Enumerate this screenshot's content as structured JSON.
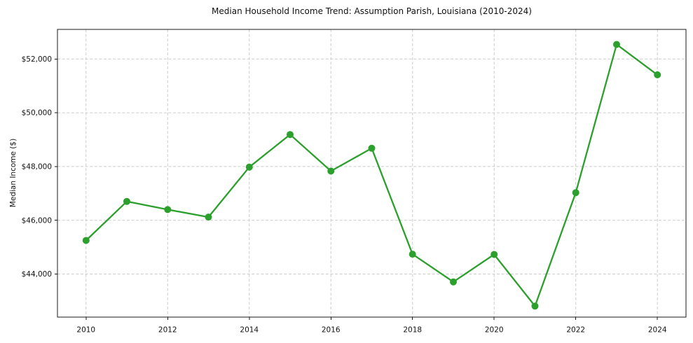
{
  "chart_data": {
    "type": "line",
    "title": "Median Household Income Trend: Assumption Parish, Louisiana (2010-2024)",
    "xlabel": "",
    "ylabel": "Median Income ($)",
    "x": [
      2010,
      2011,
      2012,
      2013,
      2014,
      2015,
      2016,
      2017,
      2018,
      2019,
      2020,
      2021,
      2022,
      2023,
      2024
    ],
    "values": [
      45250,
      46700,
      46400,
      46120,
      47980,
      49190,
      47830,
      48680,
      44740,
      43710,
      44730,
      42810,
      47030,
      52540,
      51410
    ],
    "x_ticks": {
      "values": [
        2010,
        2012,
        2014,
        2016,
        2018,
        2020,
        2022,
        2024
      ],
      "labels": [
        "2010",
        "2012",
        "2014",
        "2016",
        "2018",
        "2020",
        "2022",
        "2024"
      ]
    },
    "y_ticks": {
      "values": [
        44000,
        46000,
        48000,
        50000,
        52000
      ],
      "labels": [
        "$44,000",
        "$46,000",
        "$48,000",
        "$50,000",
        "$52,000"
      ]
    },
    "xlim": [
      2009.3,
      2024.7
    ],
    "ylim": [
      42400,
      53100
    ],
    "grid": true,
    "grid_style": "dashed",
    "legend_position": "none",
    "marker": "circle",
    "line_color": "#2ca02c",
    "grid_color": "#cbcbcb",
    "spine_color": "#1a1a1a",
    "text_color": "#111111",
    "background_color": "#ffffff"
  }
}
